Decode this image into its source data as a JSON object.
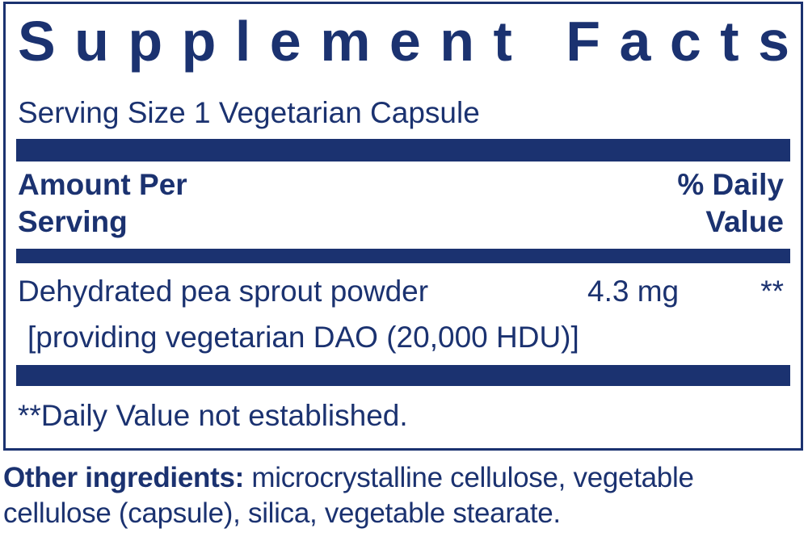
{
  "title": "Supplement Facts",
  "serving_size": "Serving Size 1 Vegetarian Capsule",
  "columns": {
    "amount": "Amount Per Serving",
    "daily_value": "% Daily Value"
  },
  "rows": [
    {
      "name": "Dehydrated pea sprout powder",
      "amount": "4.3 mg",
      "daily_value": "**",
      "note": "[providing vegetarian DAO (20,000 HDU)]"
    }
  ],
  "footnote": "**Daily Value not established.",
  "other_ingredients": {
    "label": "Other ingredients:",
    "text": "microcrystalline cellulose, vegetable cellulose (capsule), silica, vegetable stearate."
  }
}
